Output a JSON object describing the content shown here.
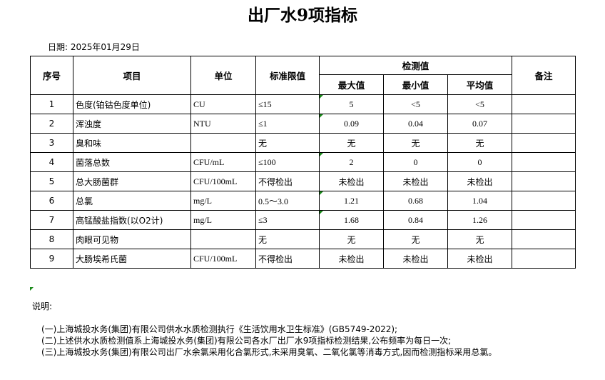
{
  "title": "出厂水9项指标",
  "date": "日期: 2025年01月29日",
  "headers": {
    "no": "序号",
    "item": "项目",
    "unit": "单位",
    "limit": "标准限值",
    "measured": "检测值",
    "max": "最大值",
    "min": "最小值",
    "avg": "平均值",
    "remark": "备注"
  },
  "rows": [
    {
      "no": "1",
      "item": "色度(铂钴色度单位)",
      "unit": "CU",
      "limit": "≤15",
      "max": "5",
      "min": "<5",
      "avg": "<5"
    },
    {
      "no": "2",
      "item": "浑浊度",
      "unit": "NTU",
      "limit": "≤1",
      "max": "0.09",
      "min": "0.04",
      "avg": "0.07"
    },
    {
      "no": "3",
      "item": "臭和味",
      "unit": "",
      "limit": "无",
      "max": "无",
      "min": "无",
      "avg": "无"
    },
    {
      "no": "4",
      "item": "菌落总数",
      "unit": "CFU/mL",
      "limit": "≤100",
      "max": "2",
      "min": "0",
      "avg": "0"
    },
    {
      "no": "5",
      "item": "总大肠菌群",
      "unit": "CFU/100mL",
      "limit": "不得检出",
      "max": "未检出",
      "min": "未检出",
      "avg": "未检出"
    },
    {
      "no": "6",
      "item": "总氯",
      "unit": "mg/L",
      "limit": "0.5～3.0",
      "max": "1.21",
      "min": "0.68",
      "avg": "1.04"
    },
    {
      "no": "7",
      "item": "高锰酸盐指数(以O2计)",
      "unit": "mg/L",
      "limit": "≤3",
      "max": "1.68",
      "min": "0.84",
      "avg": "1.26"
    },
    {
      "no": "8",
      "item": "肉眼可见物",
      "unit": "",
      "limit": "无",
      "max": "无",
      "min": "无",
      "avg": "无"
    },
    {
      "no": "9",
      "item": "大肠埃希氏菌",
      "unit": "CFU/100mL",
      "limit": "不得检出",
      "max": "未检出",
      "min": "未检出",
      "avg": "未检出"
    }
  ],
  "notes_label": "说明:",
  "notes": [
    "(一)上海城投水务(集团)有限公司供水水质检测执行《生活饮用水卫生标准》(GB5749-2022);",
    "(二)上述供水水质检测值系上海城投水务(集团)有限公司各水厂出厂水9项指标检测结果,公布频率为每日一次;",
    "(三)上海城投水务(集团)有限公司出厂水余氯采用化合氯形式,未采用臭氧、二氧化氯等消毒方式,因而检测指标采用总氯。"
  ],
  "accent": "#1a8a1a"
}
